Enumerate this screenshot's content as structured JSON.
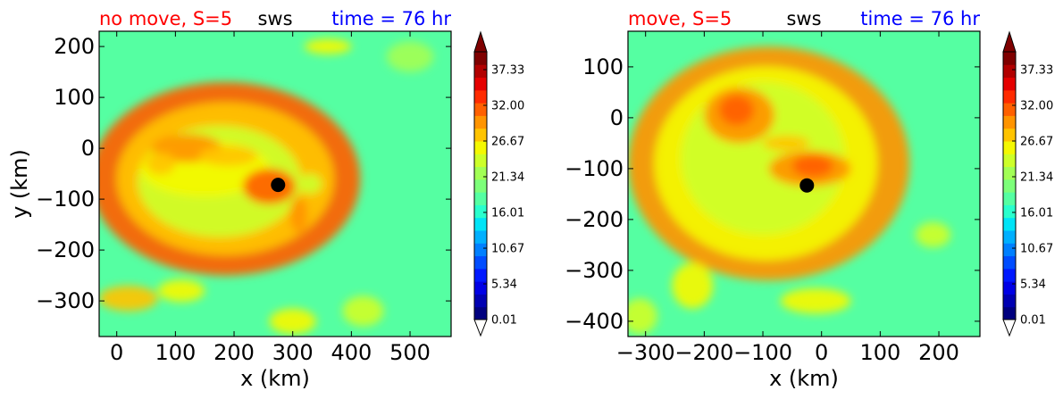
{
  "chart_data": [
    {
      "type": "heatmap",
      "title_left": "no move, S=5",
      "title_center": "sws",
      "title_right": "time = 76 hr",
      "xlabel": "x (km)",
      "ylabel": "y (km)",
      "xlim": [
        -30,
        570
      ],
      "ylim": [
        -370,
        230
      ],
      "xticks": [
        0,
        100,
        200,
        300,
        400,
        500
      ],
      "xtick_labels": [
        "0",
        "100",
        "200",
        "300",
        "400",
        "500"
      ],
      "yticks": [
        200,
        100,
        0,
        -100,
        -200,
        -300
      ],
      "ytick_labels": [
        "200",
        "100",
        "0",
        "−100",
        "−200",
        "−300"
      ],
      "center_marker": {
        "x": 275,
        "y": -72
      },
      "field": {
        "background": 9,
        "blobs": [
          {
            "x": 185,
            "y": -60,
            "rx": 230,
            "ry": 190,
            "v": 7
          },
          {
            "x": 185,
            "y": -60,
            "rx": 185,
            "ry": 150,
            "v": 5
          },
          {
            "x": 175,
            "y": -65,
            "rx": 140,
            "ry": 110,
            "v": 3
          },
          {
            "x": 150,
            "y": -40,
            "rx": 110,
            "ry": 55,
            "v": 4
          },
          {
            "x": 120,
            "y": 0,
            "rx": 60,
            "ry": 28,
            "v": 6
          },
          {
            "x": 190,
            "y": -15,
            "rx": 50,
            "ry": 20,
            "v": 5
          },
          {
            "x": 75,
            "y": -30,
            "rx": 25,
            "ry": 22,
            "v": 5
          },
          {
            "x": 260,
            "y": -75,
            "rx": 45,
            "ry": 35,
            "v": 7
          },
          {
            "x": 310,
            "y": -130,
            "rx": 15,
            "ry": 35,
            "v": 6
          },
          {
            "x": 330,
            "y": -70,
            "rx": 20,
            "ry": 20,
            "v": 3
          },
          {
            "x": 20,
            "y": -295,
            "rx": 50,
            "ry": 25,
            "v": 5
          },
          {
            "x": 110,
            "y": -280,
            "rx": 40,
            "ry": 22,
            "v": 4
          },
          {
            "x": 360,
            "y": 200,
            "rx": 40,
            "ry": 15,
            "v": 4
          },
          {
            "x": 300,
            "y": -340,
            "rx": 40,
            "ry": 25,
            "v": 4
          },
          {
            "x": 420,
            "y": -320,
            "rx": 35,
            "ry": 30,
            "v": 3
          },
          {
            "x": 500,
            "y": 180,
            "rx": 40,
            "ry": 30,
            "v": 2
          }
        ]
      }
    },
    {
      "type": "heatmap",
      "title_left": "move, S=5",
      "title_center": "sws",
      "title_right": "time = 76 hr",
      "xlabel": "x (km)",
      "ylabel": "",
      "xlim": [
        -330,
        270
      ],
      "ylim": [
        -430,
        170
      ],
      "xticks": [
        -300,
        -200,
        -100,
        0,
        100,
        200
      ],
      "xtick_labels": [
        "−300",
        "−200",
        "−100",
        "0",
        "100",
        "200"
      ],
      "yticks": [
        100,
        0,
        -100,
        -200,
        -300,
        -400
      ],
      "ytick_labels": [
        "100",
        "0",
        "−100",
        "−200",
        "−300",
        "−400"
      ],
      "center_marker": {
        "x": -25,
        "y": -133
      },
      "field": {
        "background": 9,
        "blobs": [
          {
            "x": -90,
            "y": -90,
            "rx": 240,
            "ry": 230,
            "v": 6
          },
          {
            "x": -95,
            "y": -90,
            "rx": 190,
            "ry": 190,
            "v": 4
          },
          {
            "x": -100,
            "y": -80,
            "rx": 140,
            "ry": 150,
            "v": 3
          },
          {
            "x": -140,
            "y": 5,
            "rx": 60,
            "ry": 55,
            "v": 6
          },
          {
            "x": -145,
            "y": 15,
            "rx": 30,
            "ry": 30,
            "v": 7
          },
          {
            "x": -20,
            "y": -100,
            "rx": 70,
            "ry": 35,
            "v": 6
          },
          {
            "x": -15,
            "y": -95,
            "rx": 35,
            "ry": 22,
            "v": 7
          },
          {
            "x": -60,
            "y": -50,
            "rx": 40,
            "ry": 15,
            "v": 5
          },
          {
            "x": -220,
            "y": -330,
            "rx": 35,
            "ry": 45,
            "v": 4
          },
          {
            "x": -310,
            "y": -390,
            "rx": 30,
            "ry": 35,
            "v": 3
          },
          {
            "x": 190,
            "y": -230,
            "rx": 30,
            "ry": 25,
            "v": 3
          },
          {
            "x": -10,
            "y": -360,
            "rx": 60,
            "ry": 25,
            "v": 4
          }
        ]
      }
    }
  ],
  "colorbar": {
    "tick_labels": [
      "0.01",
      "5.34",
      "10.67",
      "16.01",
      "21.34",
      "26.67",
      "32.00",
      "37.33"
    ],
    "min": 0.01,
    "max": 40,
    "colors": [
      "#00007f",
      "#0000b2",
      "#0000e5",
      "#0019ff",
      "#004dff",
      "#0080ff",
      "#00b0ff",
      "#00e4f7",
      "#29ffcd",
      "#55ffa2",
      "#7dff7a",
      "#a2ff55",
      "#cdff29",
      "#f4f802",
      "#ffc400",
      "#ff9400",
      "#ff6000",
      "#ff2b00",
      "#e50000",
      "#b20000",
      "#7f0000"
    ]
  }
}
